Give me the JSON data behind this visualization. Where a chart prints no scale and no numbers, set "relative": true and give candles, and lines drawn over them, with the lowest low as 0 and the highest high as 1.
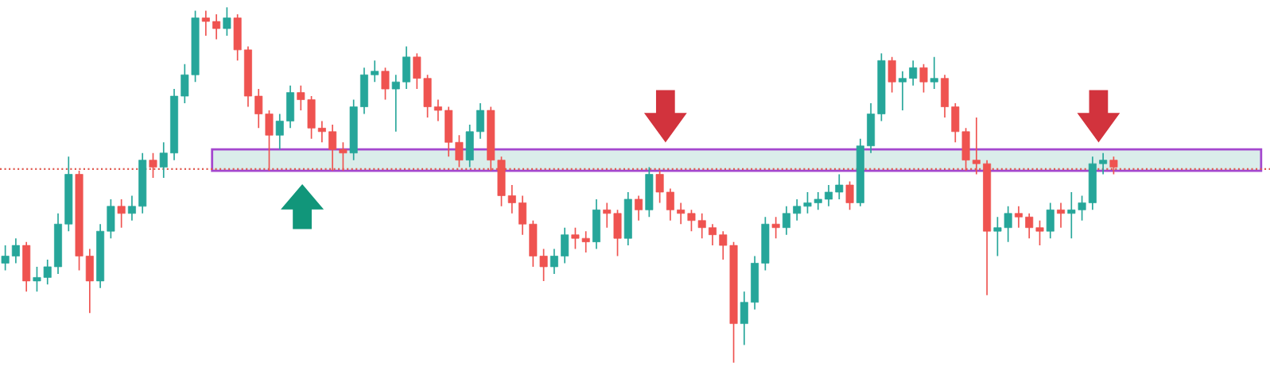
{
  "chart_data": {
    "type": "candlestick",
    "relative": true,
    "categories": [
      null,
      null,
      null,
      null,
      null,
      null,
      null,
      null,
      null,
      null,
      null,
      null,
      null,
      null,
      null,
      null,
      null,
      null,
      null,
      null,
      null,
      null,
      null,
      null,
      null,
      null,
      null,
      null,
      null,
      null,
      null,
      null,
      null,
      null,
      null,
      null,
      null,
      null,
      null,
      null,
      null,
      null,
      null,
      null,
      null,
      null,
      null,
      null,
      null,
      null,
      null,
      null,
      null,
      null,
      null,
      null,
      null,
      null,
      null,
      null,
      null,
      null,
      null,
      null,
      null,
      null,
      null,
      null,
      null,
      null,
      null,
      null,
      null,
      null,
      null,
      null,
      null,
      null,
      null,
      null,
      null,
      null,
      null,
      null,
      null,
      null,
      null,
      null,
      null,
      null,
      null,
      null,
      null,
      null,
      null,
      null,
      null,
      null,
      null,
      null,
      null,
      null,
      null,
      null,
      null,
      null
    ],
    "ohlc": [
      [
        0.28,
        0.33,
        0.26,
        0.3
      ],
      [
        0.3,
        0.35,
        0.28,
        0.33
      ],
      [
        0.33,
        0.34,
        0.2,
        0.23
      ],
      [
        0.23,
        0.27,
        0.2,
        0.24
      ],
      [
        0.24,
        0.29,
        0.22,
        0.27
      ],
      [
        0.27,
        0.42,
        0.25,
        0.39
      ],
      [
        0.39,
        0.58,
        0.37,
        0.53
      ],
      [
        0.53,
        0.54,
        0.26,
        0.3
      ],
      [
        0.3,
        0.32,
        0.14,
        0.23
      ],
      [
        0.23,
        0.39,
        0.21,
        0.37
      ],
      [
        0.37,
        0.46,
        0.35,
        0.44
      ],
      [
        0.44,
        0.46,
        0.38,
        0.42
      ],
      [
        0.42,
        0.47,
        0.4,
        0.44
      ],
      [
        0.44,
        0.59,
        0.42,
        0.57
      ],
      [
        0.57,
        0.59,
        0.52,
        0.55
      ],
      [
        0.55,
        0.62,
        0.52,
        0.59
      ],
      [
        0.59,
        0.77,
        0.57,
        0.75
      ],
      [
        0.75,
        0.84,
        0.73,
        0.81
      ],
      [
        0.81,
        0.99,
        0.79,
        0.97
      ],
      [
        0.97,
        0.99,
        0.92,
        0.96
      ],
      [
        0.96,
        0.98,
        0.91,
        0.94
      ],
      [
        0.94,
        1.0,
        0.92,
        0.97
      ],
      [
        0.97,
        0.98,
        0.85,
        0.88
      ],
      [
        0.88,
        0.89,
        0.72,
        0.75
      ],
      [
        0.75,
        0.77,
        0.66,
        0.7
      ],
      [
        0.7,
        0.71,
        0.54,
        0.64
      ],
      [
        0.64,
        0.7,
        0.6,
        0.68
      ],
      [
        0.68,
        0.78,
        0.66,
        0.76
      ],
      [
        0.76,
        0.78,
        0.71,
        0.74
      ],
      [
        0.74,
        0.75,
        0.63,
        0.66
      ],
      [
        0.66,
        0.68,
        0.62,
        0.65
      ],
      [
        0.65,
        0.67,
        0.54,
        0.6
      ],
      [
        0.6,
        0.62,
        0.54,
        0.59
      ],
      [
        0.59,
        0.74,
        0.57,
        0.72
      ],
      [
        0.72,
        0.83,
        0.7,
        0.81
      ],
      [
        0.81,
        0.85,
        0.79,
        0.82
      ],
      [
        0.82,
        0.83,
        0.74,
        0.77
      ],
      [
        0.77,
        0.81,
        0.65,
        0.79
      ],
      [
        0.79,
        0.89,
        0.77,
        0.86
      ],
      [
        0.86,
        0.87,
        0.77,
        0.8
      ],
      [
        0.8,
        0.81,
        0.69,
        0.72
      ],
      [
        0.72,
        0.74,
        0.68,
        0.71
      ],
      [
        0.71,
        0.72,
        0.58,
        0.62
      ],
      [
        0.62,
        0.64,
        0.55,
        0.57
      ],
      [
        0.57,
        0.67,
        0.55,
        0.65
      ],
      [
        0.65,
        0.73,
        0.63,
        0.71
      ],
      [
        0.71,
        0.72,
        0.54,
        0.57
      ],
      [
        0.57,
        0.58,
        0.44,
        0.47
      ],
      [
        0.47,
        0.5,
        0.42,
        0.45
      ],
      [
        0.45,
        0.47,
        0.36,
        0.39
      ],
      [
        0.39,
        0.4,
        0.27,
        0.3
      ],
      [
        0.3,
        0.32,
        0.23,
        0.27
      ],
      [
        0.27,
        0.32,
        0.25,
        0.3
      ],
      [
        0.3,
        0.38,
        0.28,
        0.36
      ],
      [
        0.36,
        0.38,
        0.32,
        0.35
      ],
      [
        0.35,
        0.37,
        0.31,
        0.34
      ],
      [
        0.34,
        0.46,
        0.32,
        0.43
      ],
      [
        0.43,
        0.45,
        0.38,
        0.42
      ],
      [
        0.42,
        0.43,
        0.3,
        0.35
      ],
      [
        0.35,
        0.48,
        0.33,
        0.46
      ],
      [
        0.46,
        0.47,
        0.4,
        0.43
      ],
      [
        0.43,
        0.55,
        0.41,
        0.53
      ],
      [
        0.53,
        0.54,
        0.45,
        0.48
      ],
      [
        0.48,
        0.49,
        0.4,
        0.43
      ],
      [
        0.43,
        0.45,
        0.39,
        0.42
      ],
      [
        0.42,
        0.43,
        0.37,
        0.4
      ],
      [
        0.4,
        0.42,
        0.35,
        0.38
      ],
      [
        0.38,
        0.39,
        0.33,
        0.36
      ],
      [
        0.36,
        0.37,
        0.29,
        0.33
      ],
      [
        0.33,
        0.34,
        0.0,
        0.11
      ],
      [
        0.11,
        0.2,
        0.05,
        0.17
      ],
      [
        0.17,
        0.3,
        0.15,
        0.28
      ],
      [
        0.28,
        0.41,
        0.26,
        0.39
      ],
      [
        0.39,
        0.41,
        0.35,
        0.38
      ],
      [
        0.38,
        0.44,
        0.36,
        0.42
      ],
      [
        0.42,
        0.46,
        0.4,
        0.44
      ],
      [
        0.44,
        0.48,
        0.42,
        0.45
      ],
      [
        0.45,
        0.48,
        0.43,
        0.46
      ],
      [
        0.46,
        0.5,
        0.44,
        0.48
      ],
      [
        0.48,
        0.53,
        0.46,
        0.5
      ],
      [
        0.5,
        0.51,
        0.43,
        0.45
      ],
      [
        0.45,
        0.63,
        0.44,
        0.61
      ],
      [
        0.61,
        0.73,
        0.59,
        0.7
      ],
      [
        0.7,
        0.87,
        0.68,
        0.85
      ],
      [
        0.85,
        0.86,
        0.76,
        0.79
      ],
      [
        0.79,
        0.82,
        0.71,
        0.8
      ],
      [
        0.8,
        0.85,
        0.78,
        0.83
      ],
      [
        0.83,
        0.84,
        0.76,
        0.79
      ],
      [
        0.79,
        0.86,
        0.77,
        0.8
      ],
      [
        0.8,
        0.81,
        0.69,
        0.72
      ],
      [
        0.72,
        0.73,
        0.62,
        0.65
      ],
      [
        0.65,
        0.66,
        0.54,
        0.57
      ],
      [
        0.57,
        0.69,
        0.53,
        0.56
      ],
      [
        0.56,
        0.57,
        0.19,
        0.37
      ],
      [
        0.37,
        0.41,
        0.3,
        0.38
      ],
      [
        0.38,
        0.44,
        0.34,
        0.42
      ],
      [
        0.42,
        0.44,
        0.38,
        0.41
      ],
      [
        0.41,
        0.42,
        0.35,
        0.38
      ],
      [
        0.38,
        0.4,
        0.33,
        0.37
      ],
      [
        0.37,
        0.45,
        0.35,
        0.43
      ],
      [
        0.43,
        0.45,
        0.38,
        0.42
      ],
      [
        0.42,
        0.48,
        0.35,
        0.43
      ],
      [
        0.43,
        0.47,
        0.4,
        0.45
      ],
      [
        0.45,
        0.58,
        0.43,
        0.56
      ],
      [
        0.56,
        0.59,
        0.53,
        0.57
      ],
      [
        0.57,
        0.58,
        0.53,
        0.55
      ]
    ],
    "colors": [
      "#26a69a",
      "#26a69a",
      "#ef5350",
      "#26a69a",
      "#26a69a",
      "#26a69a",
      "#26a69a",
      "#ef5350",
      "#ef5350",
      "#26a69a",
      "#26a69a",
      "#ef5350",
      "#26a69a",
      "#26a69a",
      "#ef5350",
      "#26a69a",
      "#26a69a",
      "#26a69a",
      "#26a69a",
      "#ef5350",
      "#ef5350",
      "#26a69a",
      "#ef5350",
      "#ef5350",
      "#ef5350",
      "#ef5350",
      "#26a69a",
      "#26a69a",
      "#ef5350",
      "#ef5350",
      "#ef5350",
      "#ef5350",
      "#ef5350",
      "#26a69a",
      "#26a69a",
      "#26a69a",
      "#ef5350",
      "#26a69a",
      "#26a69a",
      "#ef5350",
      "#ef5350",
      "#ef5350",
      "#ef5350",
      "#ef5350",
      "#26a69a",
      "#26a69a",
      "#ef5350",
      "#ef5350",
      "#ef5350",
      "#ef5350",
      "#ef5350",
      "#ef5350",
      "#26a69a",
      "#26a69a",
      "#ef5350",
      "#ef5350",
      "#26a69a",
      "#ef5350",
      "#ef5350",
      "#26a69a",
      "#ef5350",
      "#26a69a",
      "#ef5350",
      "#ef5350",
      "#ef5350",
      "#ef5350",
      "#ef5350",
      "#ef5350",
      "#ef5350",
      "#ef5350",
      "#26a69a",
      "#26a69a",
      "#26a69a",
      "#ef5350",
      "#26a69a",
      "#26a69a",
      "#26a69a",
      "#26a69a",
      "#26a69a",
      "#26a69a",
      "#ef5350",
      "#26a69a",
      "#26a69a",
      "#26a69a",
      "#ef5350",
      "#26a69a",
      "#26a69a",
      "#ef5350",
      "#26a69a",
      "#ef5350",
      "#ef5350",
      "#ef5350",
      "#ef5350",
      "#ef5350",
      "#26a69a",
      "#26a69a",
      "#ef5350",
      "#ef5350",
      "#ef5350",
      "#26a69a",
      "#ef5350",
      "#26a69a",
      "#26a69a",
      "#26a69a",
      "#26a69a",
      "#ef5350"
    ],
    "bands": [
      {
        "axis": "y",
        "from": 0.54,
        "to": 0.6,
        "color": "#d6ece8"
      }
    ],
    "ref_lines": [
      {
        "axis": "y",
        "value": 0.545,
        "color": "#e05a50",
        "line_style": "dotted"
      }
    ]
  }
}
